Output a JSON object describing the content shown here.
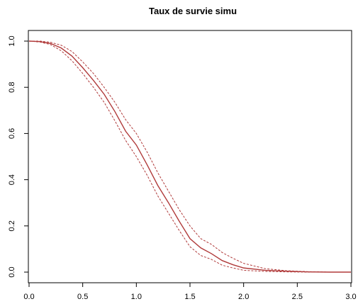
{
  "chart_data": {
    "type": "line",
    "title": "Taux de survie simu",
    "xlabel": "",
    "ylabel": "",
    "xlim": [
      0,
      3
    ],
    "ylim": [
      0,
      1
    ],
    "x_ticks": [
      "0.0",
      "0.5",
      "1.0",
      "1.5",
      "2.0",
      "2.5",
      "3.0"
    ],
    "y_ticks": [
      "0.0",
      "0.2",
      "0.4",
      "0.6",
      "0.8",
      "1.0"
    ],
    "x_tick_values": [
      0,
      0.5,
      1,
      1.5,
      2,
      2.5,
      3
    ],
    "y_tick_values": [
      0,
      0.2,
      0.4,
      0.6,
      0.8,
      1.0
    ],
    "grid": false,
    "color": "#b03a3a",
    "series": [
      {
        "style": "solid",
        "x": [
          0,
          0.1,
          0.2,
          0.3,
          0.4,
          0.5,
          0.6,
          0.7,
          0.8,
          0.9,
          1.0,
          1.1,
          1.2,
          1.3,
          1.4,
          1.5,
          1.6,
          1.7,
          1.8,
          1.9,
          2.0,
          2.2,
          2.4,
          2.6,
          2.8,
          3.0
        ],
        "y": [
          1.0,
          0.998,
          0.99,
          0.97,
          0.935,
          0.885,
          0.83,
          0.77,
          0.695,
          0.61,
          0.55,
          0.465,
          0.375,
          0.3,
          0.22,
          0.145,
          0.105,
          0.08,
          0.05,
          0.032,
          0.018,
          0.008,
          0.004,
          0.001,
          0.0,
          0.0
        ]
      },
      {
        "style": "dashed",
        "x": [
          0,
          0.1,
          0.2,
          0.3,
          0.4,
          0.5,
          0.6,
          0.7,
          0.8,
          0.9,
          1.0,
          1.1,
          1.2,
          1.3,
          1.4,
          1.5,
          1.6,
          1.7,
          1.8,
          1.9,
          2.0,
          2.2,
          2.4,
          2.6,
          2.8,
          3.0
        ],
        "y": [
          1.0,
          1.0,
          0.995,
          0.982,
          0.955,
          0.91,
          0.86,
          0.8,
          0.735,
          0.66,
          0.6,
          0.52,
          0.43,
          0.35,
          0.27,
          0.2,
          0.145,
          0.12,
          0.085,
          0.06,
          0.038,
          0.015,
          0.006,
          0.002,
          0.0,
          0.0
        ]
      },
      {
        "style": "dashed",
        "x": [
          0,
          0.1,
          0.2,
          0.3,
          0.4,
          0.5,
          0.6,
          0.7,
          0.8,
          0.9,
          1.0,
          1.1,
          1.2,
          1.3,
          1.4,
          1.5,
          1.6,
          1.7,
          1.8,
          1.9,
          2.0,
          2.2,
          2.4,
          2.6,
          2.8,
          3.0
        ],
        "y": [
          1.0,
          0.996,
          0.985,
          0.958,
          0.915,
          0.86,
          0.8,
          0.735,
          0.655,
          0.57,
          0.5,
          0.42,
          0.33,
          0.255,
          0.18,
          0.11,
          0.072,
          0.055,
          0.03,
          0.018,
          0.008,
          0.003,
          0.001,
          0.0,
          0.0,
          0.0
        ]
      }
    ]
  }
}
